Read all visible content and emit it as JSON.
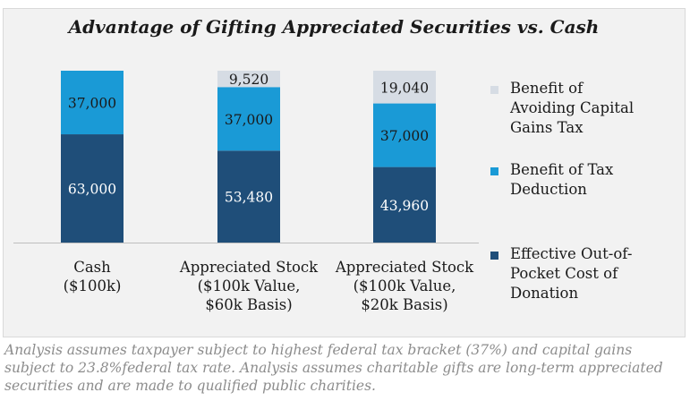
{
  "chart_data": {
    "type": "bar",
    "stacked": true,
    "title": "Advantage of Gifting Appreciated Securities vs. Cash",
    "categories": [
      [
        "Cash",
        "($100k)"
      ],
      [
        "Appreciated Stock",
        "($100k Value,",
        "$60k Basis)"
      ],
      [
        "Appreciated Stock",
        "($100k Value,",
        "$20k Basis)"
      ]
    ],
    "series": [
      {
        "name": "Effective Out-of-Pocket Cost of Donation",
        "values": [
          63000,
          53480,
          43960
        ],
        "color": "#1f4e79"
      },
      {
        "name": "Benefit of Tax Deduction",
        "values": [
          37000,
          37000,
          37000
        ],
        "color": "#1a9ad6"
      },
      {
        "name": "Benefit of Avoiding Capital Gains Tax",
        "values": [
          0,
          9520,
          19040
        ],
        "color": "#d6dce4"
      }
    ],
    "data_labels": [
      [
        "63,000",
        "37,000",
        ""
      ],
      [
        "53,480",
        "37,000",
        "9,520"
      ],
      [
        "43,960",
        "37,000",
        "19,040"
      ]
    ],
    "ylim": [
      0,
      100000
    ],
    "legend_position": "right",
    "grid": false
  },
  "legend": [
    {
      "lines": [
        "Benefit of",
        "Avoiding Capital",
        "Gains Tax"
      ],
      "color": "#d6dce4"
    },
    {
      "lines": [
        "Benefit of Tax",
        "Deduction"
      ],
      "color": "#1a9ad6"
    },
    {
      "lines": [
        "Effective Out-of-",
        "Pocket Cost of",
        "Donation"
      ],
      "color": "#1f4e79"
    }
  ],
  "note": "Analysis assumes taxpayer subject to highest federal tax bracket (37%) and capital gains subject to 23.8%federal tax rate. Analysis assumes charitable gifts are long-term appreciated securities and are made to qualified public charities."
}
